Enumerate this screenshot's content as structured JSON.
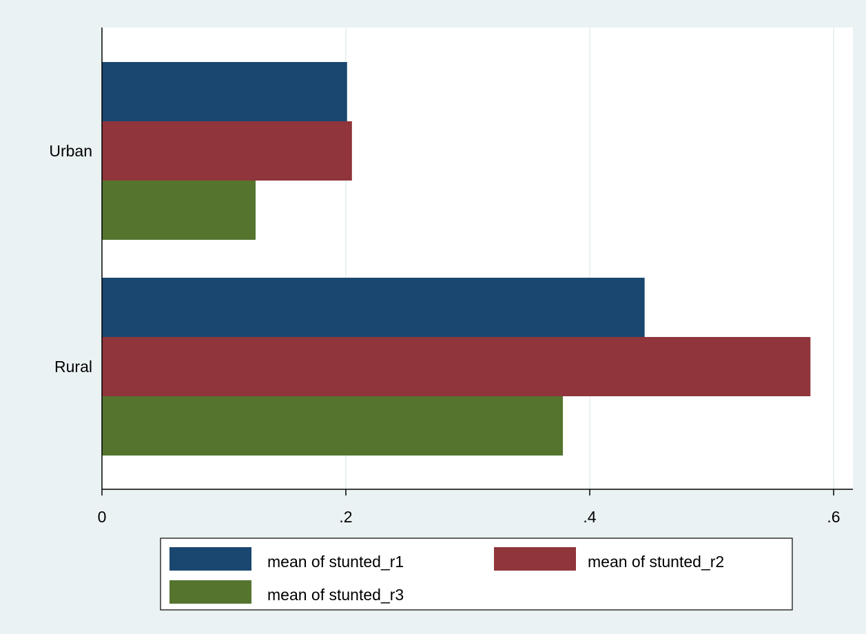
{
  "chart_data": {
    "type": "bar",
    "orientation": "horizontal",
    "categories": [
      "Urban",
      "Rural"
    ],
    "series": [
      {
        "name": "mean of stunted_r1",
        "values": [
          0.201,
          0.445
        ],
        "color": "#1a476f"
      },
      {
        "name": "mean of stunted_r2",
        "values": [
          0.205,
          0.581
        ],
        "color": "#90353b"
      },
      {
        "name": "mean of stunted_r3",
        "values": [
          0.126,
          0.378
        ],
        "color": "#55752f"
      }
    ],
    "x_ticks": [
      {
        "value": 0,
        "label": "0"
      },
      {
        "value": 0.2,
        "label": ".2"
      },
      {
        "value": 0.4,
        "label": ".4"
      },
      {
        "value": 0.6,
        "label": ".6"
      }
    ],
    "xlim": [
      0,
      0.61
    ],
    "title": "",
    "xlabel": "",
    "ylabel": "",
    "grid": true,
    "legend_position": "bottom",
    "background_color": "#eaf2f3",
    "plot_background_color": "#ffffff",
    "grid_color": "#eaf2f3"
  }
}
